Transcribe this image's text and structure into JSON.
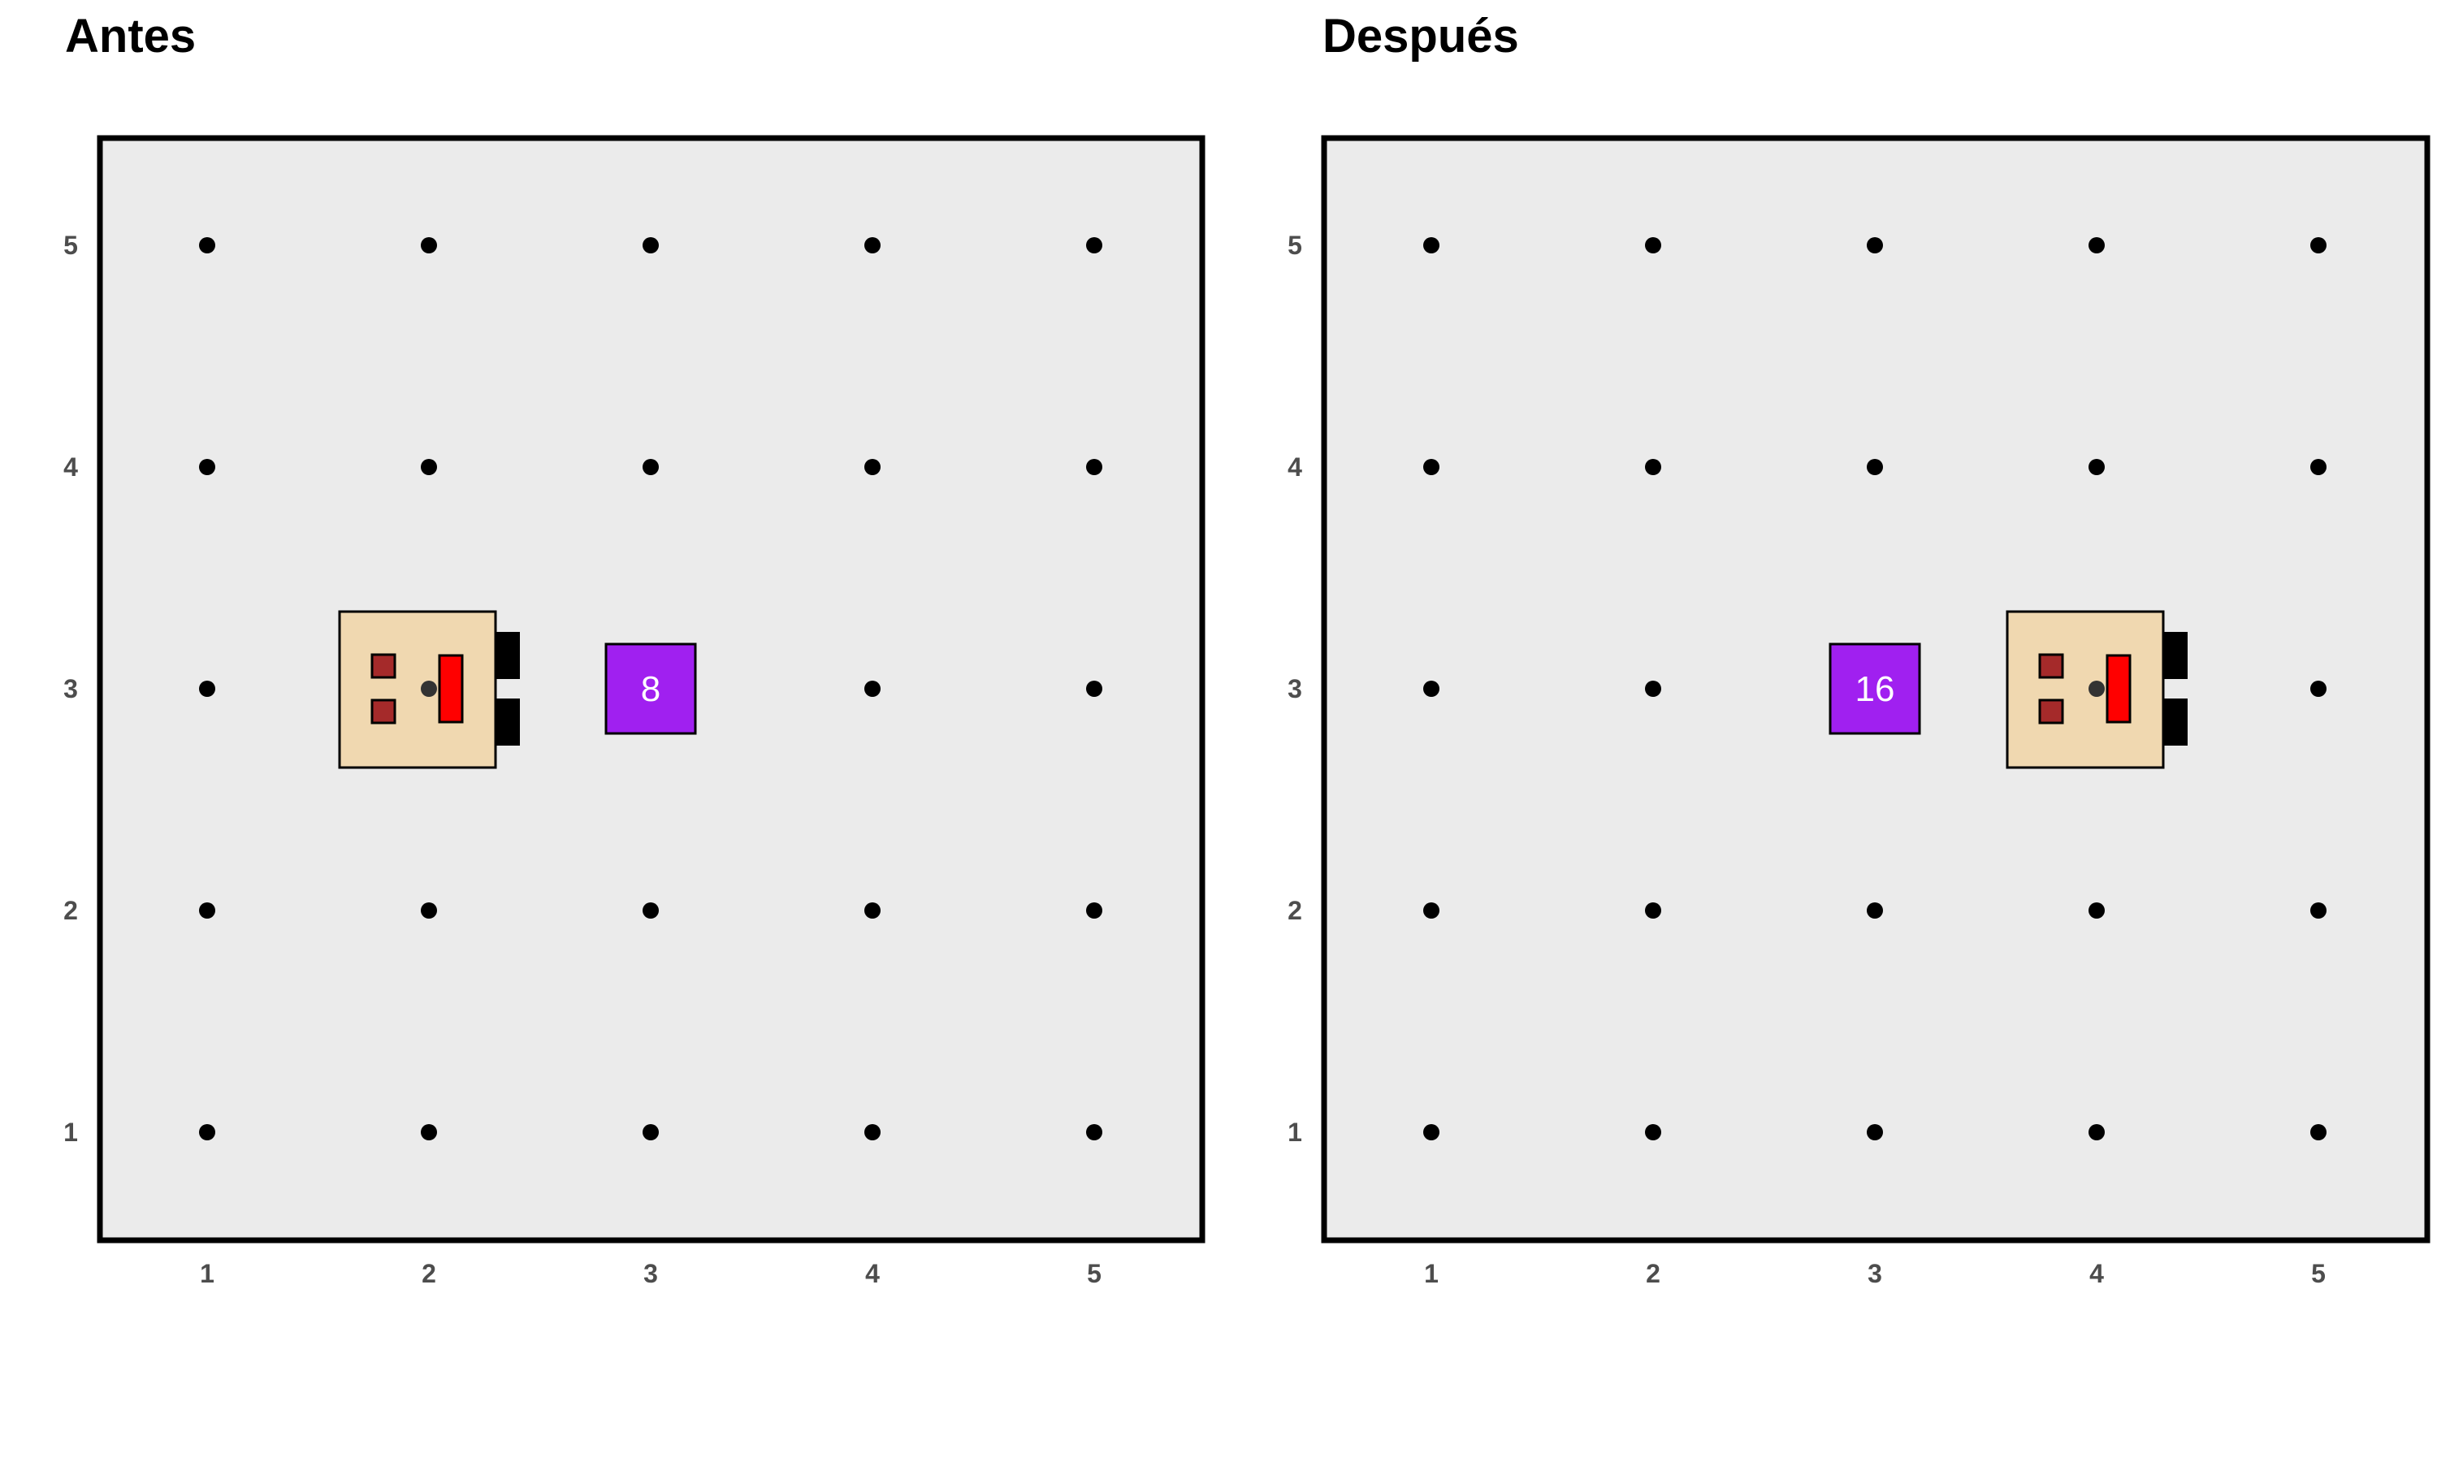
{
  "panels": [
    {
      "title": "Antes",
      "grid": {
        "cols": 5,
        "rows": 5,
        "x_ticks": [
          "1",
          "2",
          "3",
          "4",
          "5"
        ],
        "y_ticks": [
          "1",
          "2",
          "3",
          "4",
          "5"
        ]
      },
      "robot": {
        "x": 2,
        "y": 3,
        "facing": "right"
      },
      "block": {
        "x": 3,
        "y": 3,
        "label": "8"
      }
    },
    {
      "title": "Después",
      "grid": {
        "cols": 5,
        "rows": 5,
        "x_ticks": [
          "1",
          "2",
          "3",
          "4",
          "5"
        ],
        "y_ticks": [
          "1",
          "2",
          "3",
          "4",
          "5"
        ]
      },
      "robot": {
        "x": 4,
        "y": 3,
        "facing": "right"
      },
      "block": {
        "x": 3,
        "y": 3,
        "label": "16"
      }
    }
  ],
  "colors": {
    "board_bg": "#ebebeb",
    "board_border": "#000000",
    "dot": "#000000",
    "tick_text": "#4d4d4d",
    "robot_body": "#f0d8b0",
    "robot_eye": "#a52a2a",
    "robot_mouth": "#ff0000",
    "robot_claw": "#000000",
    "block": "#a020f0",
    "block_text": "#ffffff"
  },
  "icons": {
    "robot": "robot-icon",
    "block": "block-icon"
  }
}
